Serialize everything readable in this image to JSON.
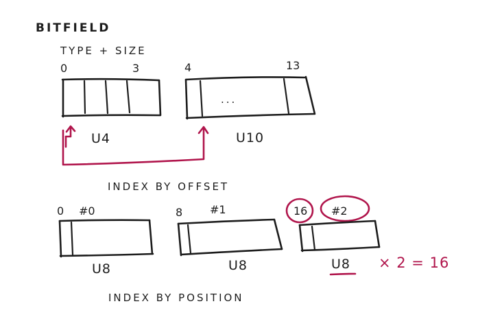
{
  "title": "BITFIELD",
  "subtitle": "TYPE + SIZE",
  "top_fields": [
    {
      "start": "0",
      "end": "3",
      "type": "U4"
    },
    {
      "start": "4",
      "end": "13",
      "type": "U10",
      "ellipsis": "..."
    }
  ],
  "offset_heading": "INDEX BY OFFSET",
  "offset_fields": [
    {
      "offset": "0",
      "index": "#0",
      "type": "U8"
    },
    {
      "offset": "8",
      "index": "#1",
      "type": "U8"
    },
    {
      "offset": "16",
      "index": "#2",
      "type": "U8"
    }
  ],
  "equation": "× 2 = 16",
  "position_heading": "INDEX BY POSITION",
  "colors": {
    "ink": "#1c1c1c",
    "accent": "#b0144b",
    "background": "#ffffff"
  }
}
